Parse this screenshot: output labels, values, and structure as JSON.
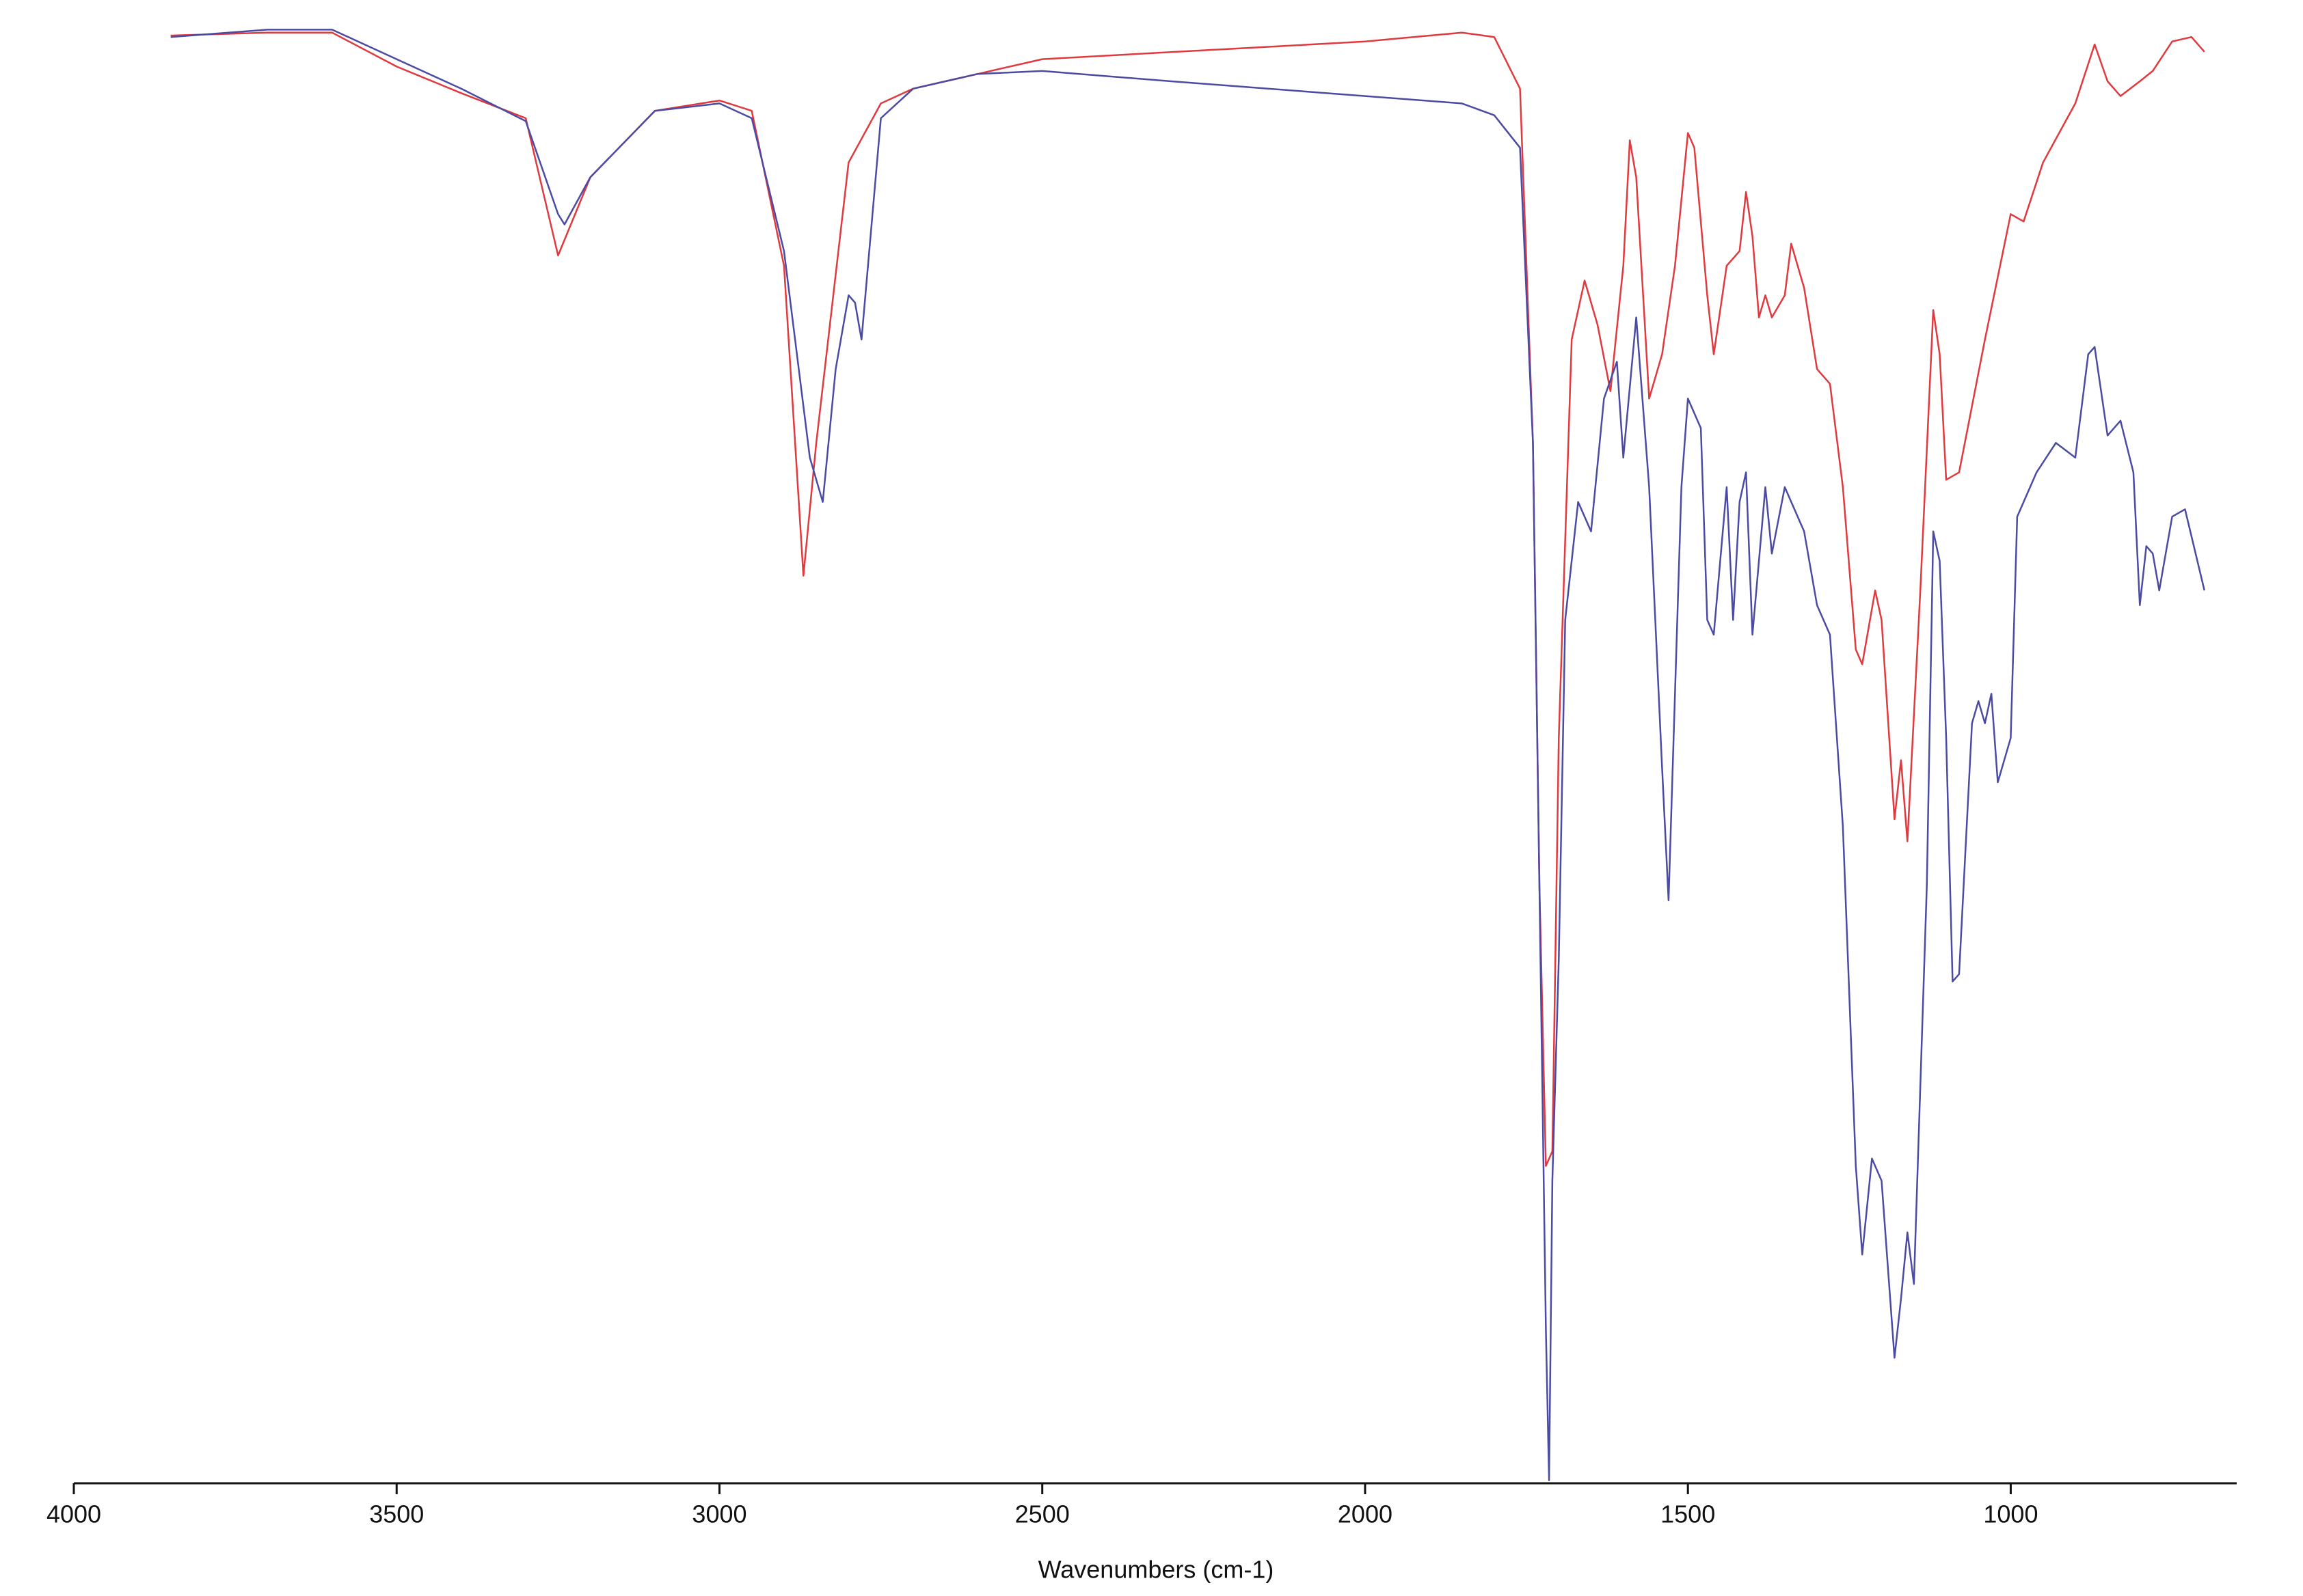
{
  "chart_data": {
    "type": "line",
    "x_label": "Wavenumbers (cm-1)",
    "xlim": [
      4000,
      650
    ],
    "xticks": [
      4000,
      3500,
      3000,
      2500,
      2000,
      1500,
      1000
    ],
    "ylim": [
      0,
      100
    ],
    "series": [
      {
        "color": "#e0393e",
        "x": [
          3850,
          3700,
          3600,
          3500,
          3400,
          3300,
          3250,
          3200,
          3100,
          3000,
          2950,
          2900,
          2870,
          2850,
          2800,
          2750,
          2700,
          2600,
          2500,
          2000,
          1850,
          1800,
          1760,
          1740,
          1730,
          1720,
          1710,
          1700,
          1680,
          1660,
          1640,
          1620,
          1600,
          1590,
          1580,
          1560,
          1540,
          1520,
          1500,
          1490,
          1470,
          1460,
          1440,
          1420,
          1410,
          1400,
          1390,
          1380,
          1370,
          1350,
          1340,
          1320,
          1300,
          1280,
          1260,
          1240,
          1230,
          1210,
          1200,
          1180,
          1170,
          1160,
          1140,
          1120,
          1110,
          1100,
          1080,
          1040,
          1000,
          980,
          950,
          900,
          870,
          850,
          830,
          800,
          780,
          750,
          720,
          700
        ],
        "values": [
          98.1,
          98.3,
          98.3,
          96.0,
          94.2,
          92.5,
          83.2,
          88.5,
          93.0,
          93.7,
          93.0,
          82.5,
          61.5,
          70.5,
          89.5,
          93.5,
          94.5,
          95.5,
          96.5,
          97.7,
          98.3,
          98.0,
          94.5,
          70.5,
          40.5,
          21.5,
          22.5,
          50.5,
          77.5,
          81.5,
          78.5,
          74.0,
          82.5,
          91.0,
          88.5,
          73.5,
          76.5,
          82.5,
          91.5,
          90.5,
          80.5,
          76.5,
          82.5,
          83.5,
          87.5,
          84.5,
          79.0,
          80.5,
          79.0,
          80.5,
          84.0,
          81.0,
          75.5,
          74.5,
          67.5,
          56.5,
          55.5,
          60.5,
          58.5,
          45.0,
          49.0,
          43.5,
          60.5,
          79.5,
          76.5,
          68.0,
          68.5,
          77.5,
          86.0,
          85.5,
          89.5,
          93.5,
          97.5,
          95.0,
          94.0,
          95.0,
          95.7,
          97.7,
          98.0,
          97.0
        ]
      },
      {
        "color": "#4b4ba3",
        "x": [
          3850,
          3700,
          3600,
          3500,
          3400,
          3300,
          3250,
          3240,
          3200,
          3100,
          3000,
          2950,
          2900,
          2860,
          2840,
          2820,
          2800,
          2790,
          2780,
          2750,
          2700,
          2600,
          2500,
          2300,
          2000,
          1850,
          1800,
          1760,
          1740,
          1720,
          1715,
          1710,
          1700,
          1690,
          1670,
          1650,
          1630,
          1610,
          1600,
          1580,
          1560,
          1540,
          1530,
          1510,
          1500,
          1480,
          1470,
          1460,
          1440,
          1430,
          1420,
          1410,
          1400,
          1390,
          1380,
          1370,
          1350,
          1320,
          1300,
          1280,
          1260,
          1240,
          1230,
          1215,
          1200,
          1180,
          1170,
          1160,
          1150,
          1130,
          1120,
          1110,
          1100,
          1090,
          1080,
          1060,
          1050,
          1040,
          1030,
          1020,
          1000,
          990,
          960,
          930,
          900,
          880,
          870,
          850,
          830,
          810,
          800,
          790,
          780,
          770,
          750,
          730,
          700
        ],
        "values": [
          98.0,
          98.5,
          98.5,
          96.5,
          94.5,
          92.3,
          86.0,
          85.3,
          88.5,
          93.0,
          93.5,
          92.5,
          83.5,
          69.5,
          66.5,
          75.5,
          80.5,
          80.0,
          77.5,
          92.5,
          94.5,
          95.5,
          95.7,
          95.0,
          94.0,
          93.5,
          92.7,
          90.5,
          70.5,
          10.5,
          0.2,
          20.5,
          35.5,
          58.5,
          66.5,
          64.5,
          73.5,
          76.0,
          69.5,
          79.0,
          67.5,
          48.5,
          39.5,
          67.5,
          73.5,
          71.5,
          58.5,
          57.5,
          67.5,
          58.5,
          66.5,
          68.5,
          57.5,
          62.5,
          67.5,
          63.0,
          67.5,
          64.5,
          59.5,
          57.5,
          44.5,
          21.5,
          15.5,
          22.0,
          20.5,
          8.5,
          12.5,
          17.0,
          13.5,
          40.5,
          64.5,
          62.5,
          50.5,
          34.0,
          34.5,
          51.5,
          53.0,
          51.5,
          53.5,
          47.5,
          50.5,
          65.5,
          68.5,
          70.5,
          69.5,
          76.5,
          77.0,
          71.0,
          72.0,
          68.5,
          59.5,
          63.5,
          63.0,
          60.5,
          65.5,
          66.0,
          60.5
        ]
      }
    ]
  }
}
